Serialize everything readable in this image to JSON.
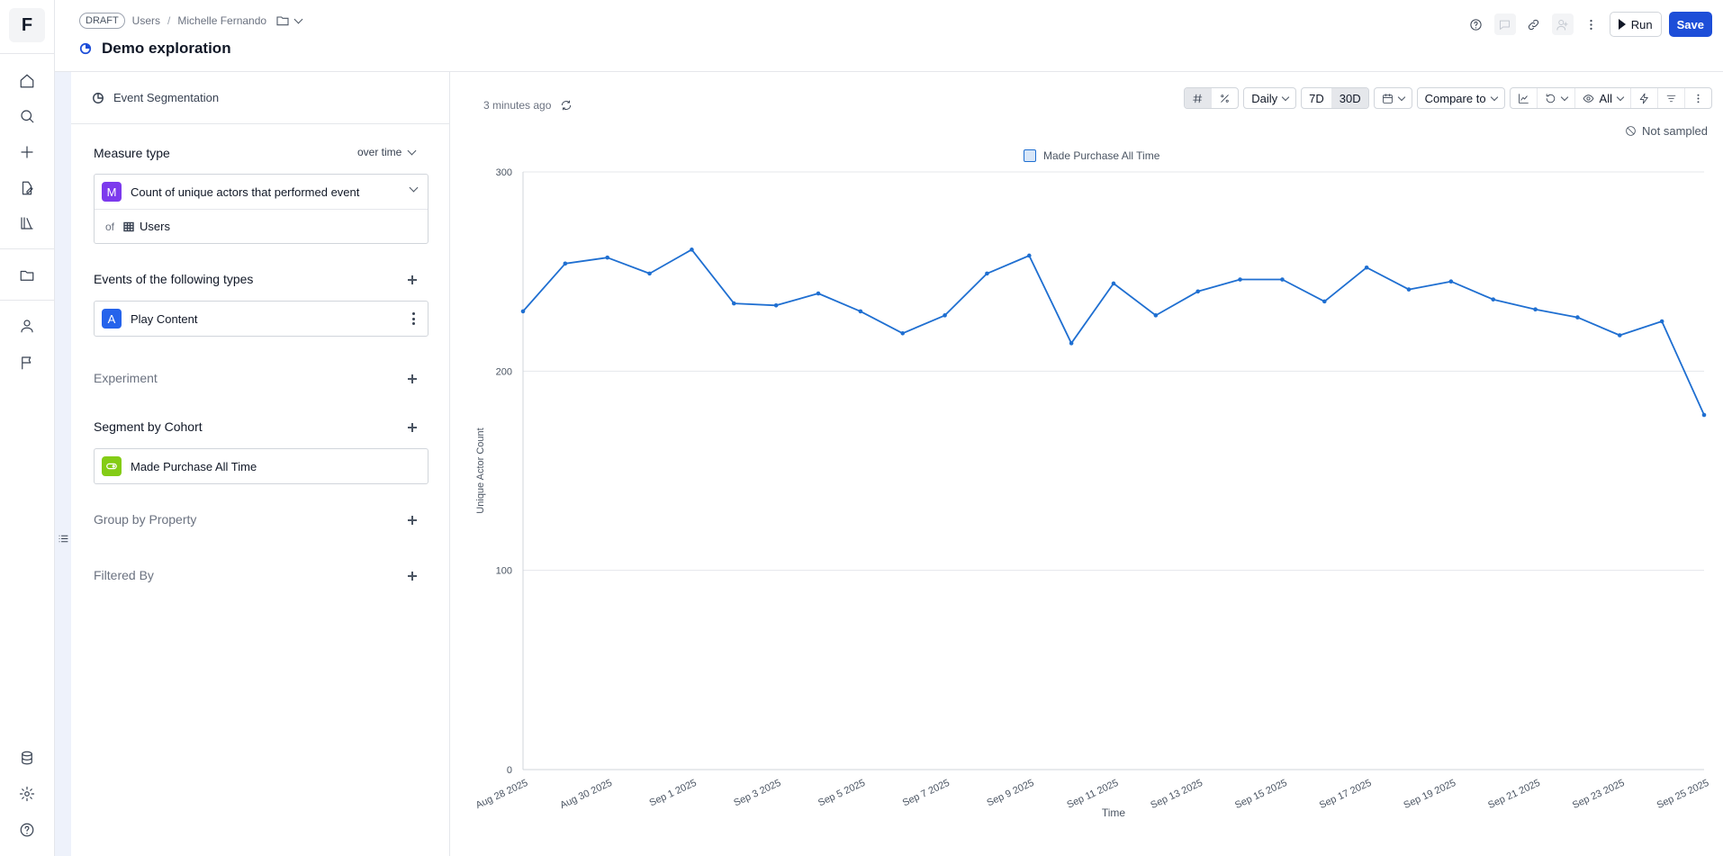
{
  "app": {
    "logo_letter": "F"
  },
  "header": {
    "draft_badge": "DRAFT",
    "breadcrumbs": [
      "Users",
      "Michelle Fernando"
    ],
    "title": "Demo exploration",
    "run_label": "Run",
    "save_label": "Save"
  },
  "panel": {
    "analysis_type": "Event Segmentation",
    "measure_type": {
      "label": "Measure type",
      "mode": "over time",
      "metric_letter": "M",
      "metric": "Count of unique actors that performed event",
      "of_prefix": "of",
      "entity": "Users"
    },
    "events": {
      "label": "Events of the following types",
      "items": [
        {
          "letter": "A",
          "name": "Play Content"
        }
      ]
    },
    "experiment_label": "Experiment",
    "segment": {
      "label": "Segment by Cohort",
      "items": [
        {
          "name": "Made Purchase All Time"
        }
      ]
    },
    "group_label": "Group by Property",
    "filter_label": "Filtered By"
  },
  "toolbar": {
    "updated": "3 minutes ago",
    "granularity": "Daily",
    "range_7d": "7D",
    "range_30d": "30D",
    "compare": "Compare to",
    "visibility": "All",
    "not_sampled": "Not sampled"
  },
  "colors": {
    "accent": "#1d4ed8",
    "series": "#1f6fd1"
  },
  "chart_data": {
    "type": "line",
    "title": "",
    "xlabel": "Time",
    "ylabel": "Unique Actor Count",
    "ylim": [
      0,
      300
    ],
    "yticks": [
      0,
      100,
      200,
      300
    ],
    "xtick_labels": [
      "Aug 28 2025",
      "Aug 30 2025",
      "Sep 1 2025",
      "Sep 3 2025",
      "Sep 5 2025",
      "Sep 7 2025",
      "Sep 9 2025",
      "Sep 11 2025",
      "Sep 13 2025",
      "Sep 15 2025",
      "Sep 17 2025",
      "Sep 19 2025",
      "Sep 21 2025",
      "Sep 23 2025",
      "Sep 25 2025"
    ],
    "x": [
      "Aug 28 2025",
      "Aug 29 2025",
      "Aug 30 2025",
      "Aug 31 2025",
      "Sep 1 2025",
      "Sep 2 2025",
      "Sep 3 2025",
      "Sep 4 2025",
      "Sep 5 2025",
      "Sep 6 2025",
      "Sep 7 2025",
      "Sep 8 2025",
      "Sep 9 2025",
      "Sep 10 2025",
      "Sep 11 2025",
      "Sep 12 2025",
      "Sep 13 2025",
      "Sep 14 2025",
      "Sep 15 2025",
      "Sep 16 2025",
      "Sep 17 2025",
      "Sep 18 2025",
      "Sep 19 2025",
      "Sep 20 2025",
      "Sep 21 2025",
      "Sep 22 2025",
      "Sep 23 2025",
      "Sep 24 2025",
      "Sep 25 2025"
    ],
    "series": [
      {
        "name": "Made Purchase All Time",
        "color": "#1f6fd1",
        "values": [
          230,
          254,
          257,
          249,
          261,
          234,
          233,
          239,
          230,
          219,
          228,
          249,
          258,
          214,
          244,
          228,
          240,
          246,
          246,
          235,
          252,
          241,
          245,
          236,
          231,
          227,
          218,
          225,
          178
        ]
      }
    ],
    "legend_position": "top-center",
    "grid": true
  }
}
